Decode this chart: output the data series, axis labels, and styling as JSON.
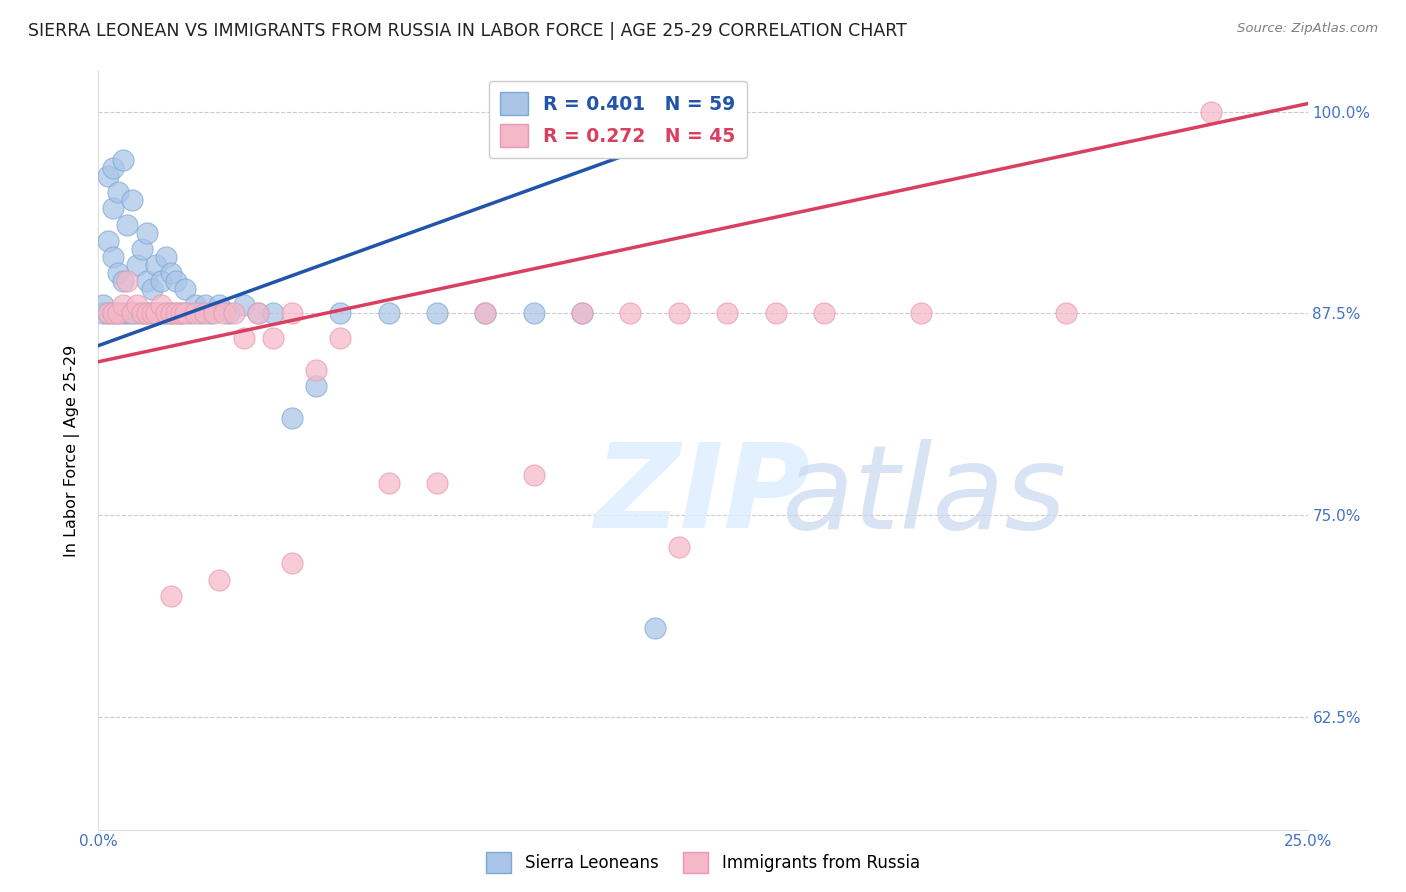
{
  "title": "SIERRA LEONEAN VS IMMIGRANTS FROM RUSSIA IN LABOR FORCE | AGE 25-29 CORRELATION CHART",
  "source": "Source: ZipAtlas.com",
  "ylabel": "In Labor Force | Age 25-29",
  "x_min": 0.0,
  "x_max": 0.25,
  "y_min": 0.555,
  "y_max": 1.025,
  "y_ticks": [
    0.625,
    0.75,
    0.875,
    1.0
  ],
  "y_tick_labels": [
    "62.5%",
    "75.0%",
    "87.5%",
    "100.0%"
  ],
  "grid_color": "#cccccc",
  "background_color": "#ffffff",
  "legend_r1": "R = 0.401",
  "legend_n1": "N = 59",
  "legend_r2": "R = 0.272",
  "legend_n2": "N = 45",
  "series1_color": "#aac4e8",
  "series2_color": "#f5b8c8",
  "series1_edge": "#7aaad0",
  "series2_edge": "#e898b0",
  "trendline1_color": "#2255aa",
  "trendline2_color": "#d94060",
  "tick_color": "#4472c4",
  "sl_x": [
    0.001,
    0.001,
    0.002,
    0.002,
    0.002,
    0.003,
    0.003,
    0.003,
    0.003,
    0.004,
    0.004,
    0.004,
    0.005,
    0.005,
    0.005,
    0.006,
    0.006,
    0.007,
    0.007,
    0.008,
    0.008,
    0.009,
    0.009,
    0.01,
    0.01,
    0.01,
    0.011,
    0.011,
    0.012,
    0.012,
    0.013,
    0.013,
    0.014,
    0.014,
    0.015,
    0.015,
    0.016,
    0.016,
    0.017,
    0.018,
    0.019,
    0.02,
    0.021,
    0.022,
    0.023,
    0.025,
    0.027,
    0.03,
    0.033,
    0.036,
    0.04,
    0.045,
    0.05,
    0.06,
    0.07,
    0.08,
    0.09,
    0.1,
    0.115
  ],
  "sl_y": [
    0.875,
    0.88,
    0.875,
    0.92,
    0.96,
    0.875,
    0.91,
    0.94,
    0.965,
    0.875,
    0.9,
    0.95,
    0.875,
    0.895,
    0.97,
    0.875,
    0.93,
    0.875,
    0.945,
    0.875,
    0.905,
    0.875,
    0.915,
    0.875,
    0.895,
    0.925,
    0.875,
    0.89,
    0.875,
    0.905,
    0.875,
    0.895,
    0.875,
    0.91,
    0.875,
    0.9,
    0.875,
    0.895,
    0.875,
    0.89,
    0.875,
    0.88,
    0.875,
    0.88,
    0.875,
    0.88,
    0.875,
    0.88,
    0.875,
    0.875,
    0.81,
    0.83,
    0.875,
    0.875,
    0.875,
    0.875,
    0.875,
    0.875,
    0.68
  ],
  "ru_x": [
    0.002,
    0.003,
    0.004,
    0.005,
    0.006,
    0.007,
    0.008,
    0.009,
    0.01,
    0.011,
    0.012,
    0.013,
    0.014,
    0.015,
    0.016,
    0.017,
    0.018,
    0.02,
    0.022,
    0.024,
    0.026,
    0.028,
    0.03,
    0.033,
    0.036,
    0.04,
    0.045,
    0.05,
    0.06,
    0.07,
    0.08,
    0.09,
    0.1,
    0.11,
    0.12,
    0.13,
    0.14,
    0.15,
    0.17,
    0.2,
    0.015,
    0.025,
    0.04,
    0.12,
    0.23
  ],
  "ru_y": [
    0.875,
    0.875,
    0.875,
    0.88,
    0.895,
    0.875,
    0.88,
    0.875,
    0.875,
    0.875,
    0.875,
    0.88,
    0.875,
    0.875,
    0.875,
    0.875,
    0.875,
    0.875,
    0.875,
    0.875,
    0.875,
    0.875,
    0.86,
    0.875,
    0.86,
    0.875,
    0.84,
    0.86,
    0.77,
    0.77,
    0.875,
    0.775,
    0.875,
    0.875,
    0.875,
    0.875,
    0.875,
    0.875,
    0.875,
    0.875,
    0.7,
    0.71,
    0.72,
    0.73,
    1.0
  ]
}
